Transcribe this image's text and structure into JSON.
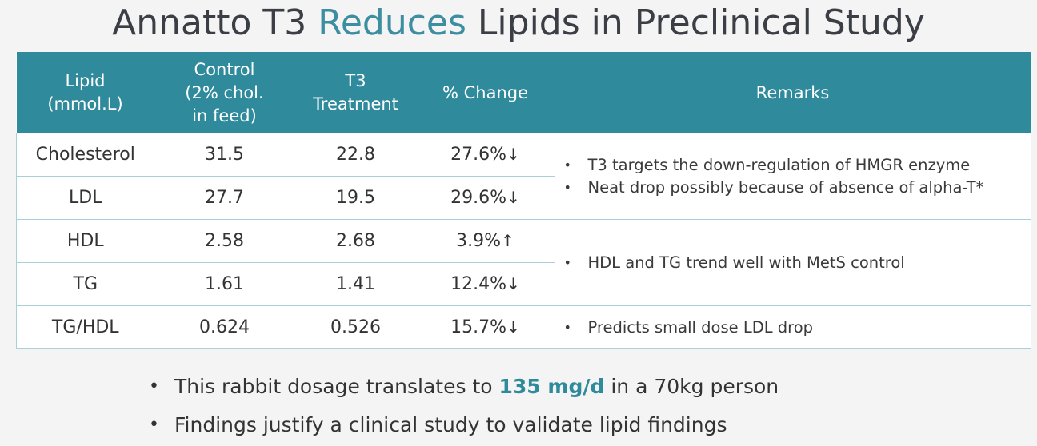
{
  "title": {
    "part1": "Annatto T3 ",
    "highlight": "Reduces",
    "part2": " Lipids in Preclinical Study"
  },
  "table": {
    "headers": {
      "lipid": [
        "Lipid",
        "(mmol.L)"
      ],
      "control": [
        "Control",
        "(2% chol.",
        "in feed)"
      ],
      "t3": [
        "T3",
        "Treatment"
      ],
      "change": "% Change",
      "remarks": "Remarks"
    },
    "rows": [
      {
        "lipid": "Cholesterol",
        "control": "31.5",
        "t3": "22.8",
        "change": "27.6%",
        "dir": "↓"
      },
      {
        "lipid": "LDL",
        "control": "27.7",
        "t3": "19.5",
        "change": "29.6%",
        "dir": "↓"
      },
      {
        "lipid": "HDL",
        "control": "2.58",
        "t3": "2.68",
        "change": "3.9%",
        "dir": "↑"
      },
      {
        "lipid": "TG",
        "control": "1.61",
        "t3": "1.41",
        "change": "12.4%",
        "dir": "↓"
      },
      {
        "lipid": "TG/HDL",
        "control": "0.624",
        "t3": "0.526",
        "change": "15.7%",
        "dir": "↓"
      }
    ],
    "remarks": [
      [
        "T3 targets the down-regulation of HMGR enzyme",
        "Neat drop possibly because of absence of alpha-T*"
      ],
      [
        "HDL and TG trend well with MetS control"
      ],
      [
        "Predicts small dose LDL drop"
      ]
    ]
  },
  "bullets": {
    "b1_pre": "This rabbit dosage translates to ",
    "b1_highlight": "135 mg/d",
    "b1_post": " in a 70kg person",
    "b2": "Findings justify a clinical study to validate lipid findings"
  },
  "colors": {
    "header_bg": "#2f8a9c",
    "accent": "#3c8ea0"
  }
}
